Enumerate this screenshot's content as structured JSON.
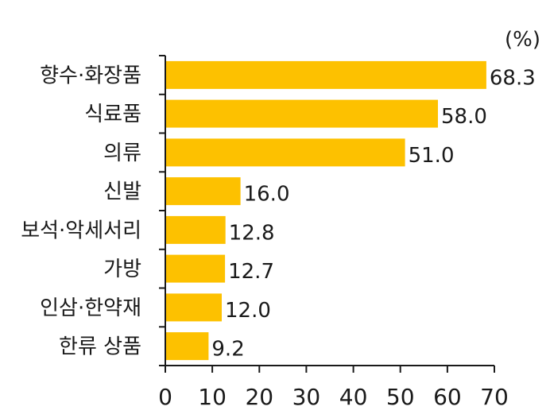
{
  "chart_data": {
    "type": "bar",
    "orientation": "horizontal",
    "unit_label": "(%)",
    "categories": [
      "향수·화장품",
      "식료품",
      "의류",
      "신발",
      "보석·악세서리",
      "가방",
      "인삼·한약재",
      "한류 상품"
    ],
    "values": [
      68.3,
      58.0,
      51.0,
      16.0,
      12.8,
      12.7,
      12.0,
      9.2
    ],
    "value_labels": [
      "68.3",
      "58.0",
      "51.0",
      "16.0",
      "12.8",
      "12.7",
      "12.0",
      "9.2"
    ],
    "xlim": [
      0,
      70
    ],
    "xticks": [
      0,
      10,
      20,
      30,
      40,
      50,
      60,
      70
    ],
    "xtick_labels": [
      "0",
      "10",
      "20",
      "30",
      "40",
      "50",
      "60",
      "70"
    ],
    "bar_color": "#FDC100",
    "axis_color": "#1a1a1a",
    "grid": false,
    "title": "",
    "xlabel": "",
    "ylabel": ""
  }
}
